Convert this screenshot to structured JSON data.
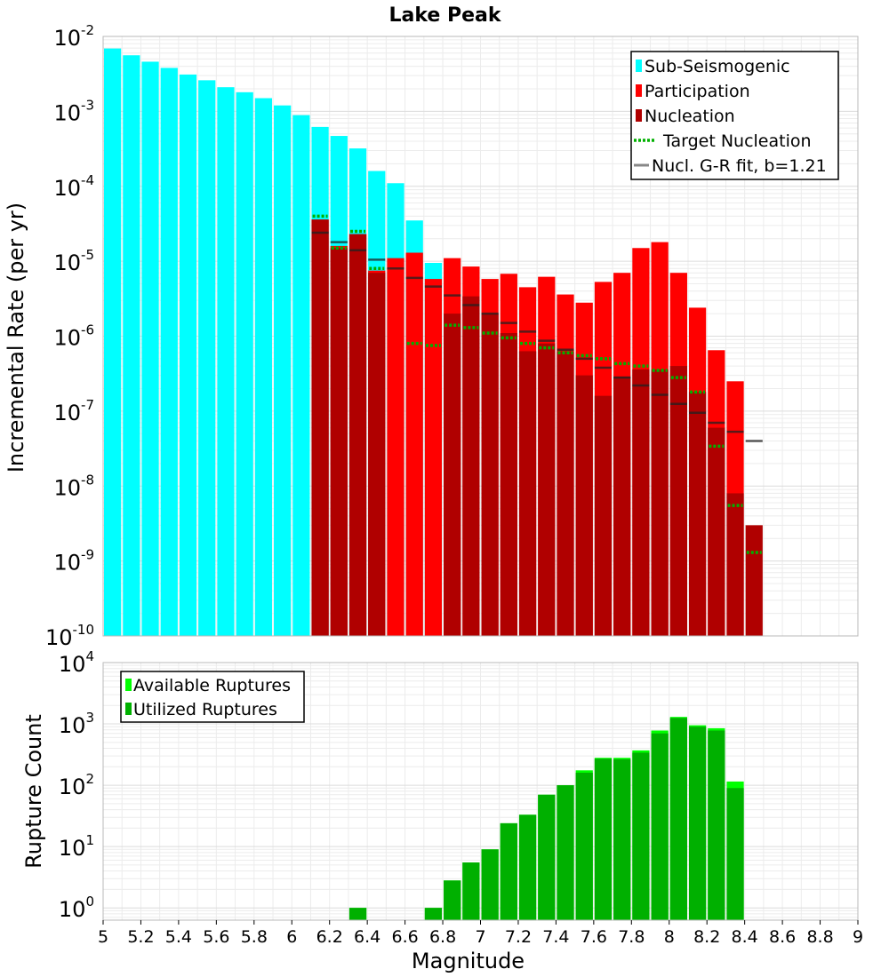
{
  "chart_data": [
    {
      "type": "bar",
      "title": "Lake Peak",
      "ylabel": "Incremental Rate (per yr)",
      "xlim": [
        5,
        9
      ],
      "ylim_log10": [
        -10,
        -2
      ],
      "y_scale": "log",
      "bin_width": 0.1,
      "y_tick_exponents": [
        -2,
        -3,
        -4,
        -5,
        -6,
        -7,
        -8,
        -9,
        -10
      ],
      "y_tick_base": "10",
      "legend": {
        "placement": "top-right",
        "entries": [
          "Sub-Seismogenic",
          "Participation",
          "Nucleation",
          "Target Nucleation",
          "Nucl. G-R fit, b=1.21"
        ]
      },
      "colors": {
        "sub_seismogenic": "#00ffff",
        "participation": "#ff0000",
        "nucleation": "#b00000",
        "target": "#00b000",
        "gr_fit": "#888888"
      },
      "series": [
        {
          "name": "Sub-Seismogenic",
          "x": [
            5.05,
            5.15,
            5.25,
            5.35,
            5.45,
            5.55,
            5.65,
            5.75,
            5.85,
            5.95,
            6.05,
            6.15,
            6.25,
            6.35,
            6.45,
            6.55,
            6.65,
            6.75
          ],
          "y": [
            0.0069,
            0.0056,
            0.0046,
            0.0038,
            0.0031,
            0.0026,
            0.0021,
            0.0018,
            0.0015,
            0.0012,
            0.00089,
            0.00062,
            0.00047,
            0.00032,
            0.00016,
            0.00011,
            3.5e-05,
            9.5e-06
          ]
        },
        {
          "name": "Participation",
          "x": [
            6.15,
            6.25,
            6.35,
            6.45,
            6.55,
            6.65,
            6.75,
            6.85,
            6.95,
            7.05,
            7.15,
            7.25,
            7.35,
            7.45,
            7.55,
            7.65,
            7.75,
            7.85,
            7.95,
            8.05,
            8.15,
            8.25,
            8.35,
            8.45
          ],
          "y": [
            3.6e-05,
            1.6e-05,
            2.3e-05,
            7.5e-06,
            1.1e-05,
            1.3e-05,
            5.8e-06,
            1.1e-05,
            8.5e-06,
            5.8e-06,
            6.8e-06,
            4.5e-06,
            6.2e-06,
            3.6e-06,
            2.8e-06,
            5.3e-06,
            7e-06,
            1.5e-05,
            1.8e-05,
            7e-06,
            2.4e-06,
            6.5e-07,
            2.5e-07,
            0
          ]
        },
        {
          "name": "Nucleation",
          "x": [
            6.15,
            6.25,
            6.35,
            6.45,
            6.55,
            6.65,
            6.75,
            6.85,
            6.95,
            7.05,
            7.15,
            7.25,
            7.35,
            7.45,
            7.55,
            7.65,
            7.75,
            7.85,
            7.95,
            8.05,
            8.15,
            8.25,
            8.35,
            8.45
          ],
          "y": [
            3.6e-05,
            1.5e-05,
            2.3e-05,
            7e-06,
            0,
            0,
            0,
            2e-06,
            3.4e-06,
            2e-06,
            1.1e-06,
            6.3e-07,
            8e-07,
            6.3e-07,
            3e-07,
            1.6e-07,
            2.9e-07,
            3.6e-07,
            3.6e-07,
            4e-07,
            1.8e-07,
            6e-08,
            8e-09,
            3e-09
          ]
        },
        {
          "name": "Target Nucleation",
          "x": [
            6.15,
            6.25,
            6.35,
            6.45,
            6.65,
            6.75,
            6.85,
            6.95,
            7.05,
            7.15,
            7.25,
            7.35,
            7.45,
            7.55,
            7.65,
            7.75,
            7.85,
            7.95,
            8.05,
            8.15,
            8.25,
            8.35,
            8.45
          ],
          "y": [
            4e-05,
            1.5e-05,
            2.5e-05,
            8e-06,
            8e-07,
            7.5e-07,
            1.4e-06,
            1.3e-06,
            1.1e-06,
            9.5e-07,
            8e-07,
            7e-07,
            6e-07,
            5.5e-07,
            5e-07,
            4.3e-07,
            4e-07,
            3.5e-07,
            2.8e-07,
            1.8e-07,
            3.4e-08,
            5.5e-09,
            1.3e-09
          ]
        },
        {
          "name": "Nucl. G-R fit, b=1.21",
          "x": [
            6.15,
            6.25,
            6.35,
            6.45,
            6.55,
            6.65,
            6.75,
            6.85,
            6.95,
            7.05,
            7.15,
            7.25,
            7.35,
            7.45,
            7.55,
            7.65,
            7.75,
            7.85,
            7.95,
            8.05,
            8.15,
            8.25,
            8.35,
            8.45
          ],
          "y": [
            2.4e-05,
            1.8e-05,
            1.4e-05,
            1.05e-05,
            8e-06,
            6e-06,
            4.6e-06,
            3.5e-06,
            2.6e-06,
            2e-06,
            1.5e-06,
            1.15e-06,
            8.7e-07,
            6.6e-07,
            5e-07,
            3.8e-07,
            2.8e-07,
            2.2e-07,
            1.65e-07,
            1.25e-07,
            9.5e-08,
            7e-08,
            5.3e-08,
            4e-08
          ]
        }
      ]
    },
    {
      "type": "bar",
      "xlabel": "Magnitude",
      "ylabel": "Rupture Count",
      "xlim": [
        5,
        9
      ],
      "ylim_log10": [
        -0.2,
        4
      ],
      "y_scale": "log",
      "bin_width": 0.1,
      "x_ticks": [
        "5",
        "5.2",
        "5.4",
        "5.6",
        "5.8",
        "6",
        "6.2",
        "6.4",
        "6.6",
        "6.8",
        "7",
        "7.2",
        "7.4",
        "7.6",
        "7.8",
        "8",
        "8.2",
        "8.4",
        "8.6",
        "8.8",
        "9"
      ],
      "y_tick_exponents": [
        4,
        3,
        2,
        1,
        0
      ],
      "y_tick_base": "10",
      "legend": {
        "placement": "top-left",
        "entries": [
          "Available Ruptures",
          "Utilized Ruptures"
        ]
      },
      "colors": {
        "available": "#00ff00",
        "utilized": "#00b000"
      },
      "series": [
        {
          "name": "Available Ruptures",
          "x": [
            6.35,
            6.75,
            6.85,
            6.95,
            7.05,
            7.15,
            7.25,
            7.35,
            7.45,
            7.55,
            7.65,
            7.75,
            7.85,
            7.95,
            8.05,
            8.15,
            8.25,
            8.35
          ],
          "y": [
            1,
            1,
            2.8,
            5.5,
            9,
            24,
            33,
            70,
            100,
            175,
            280,
            280,
            370,
            780,
            1300,
            950,
            850,
            115
          ]
        },
        {
          "name": "Utilized Ruptures",
          "x": [
            6.35,
            6.75,
            6.85,
            6.95,
            7.05,
            7.15,
            7.25,
            7.35,
            7.45,
            7.55,
            7.65,
            7.75,
            7.85,
            7.95,
            8.05,
            8.15,
            8.25,
            8.35
          ],
          "y": [
            1,
            1,
            2.8,
            5.5,
            9,
            24,
            33,
            70,
            100,
            160,
            270,
            265,
            340,
            700,
            1250,
            900,
            780,
            90
          ]
        }
      ]
    }
  ]
}
